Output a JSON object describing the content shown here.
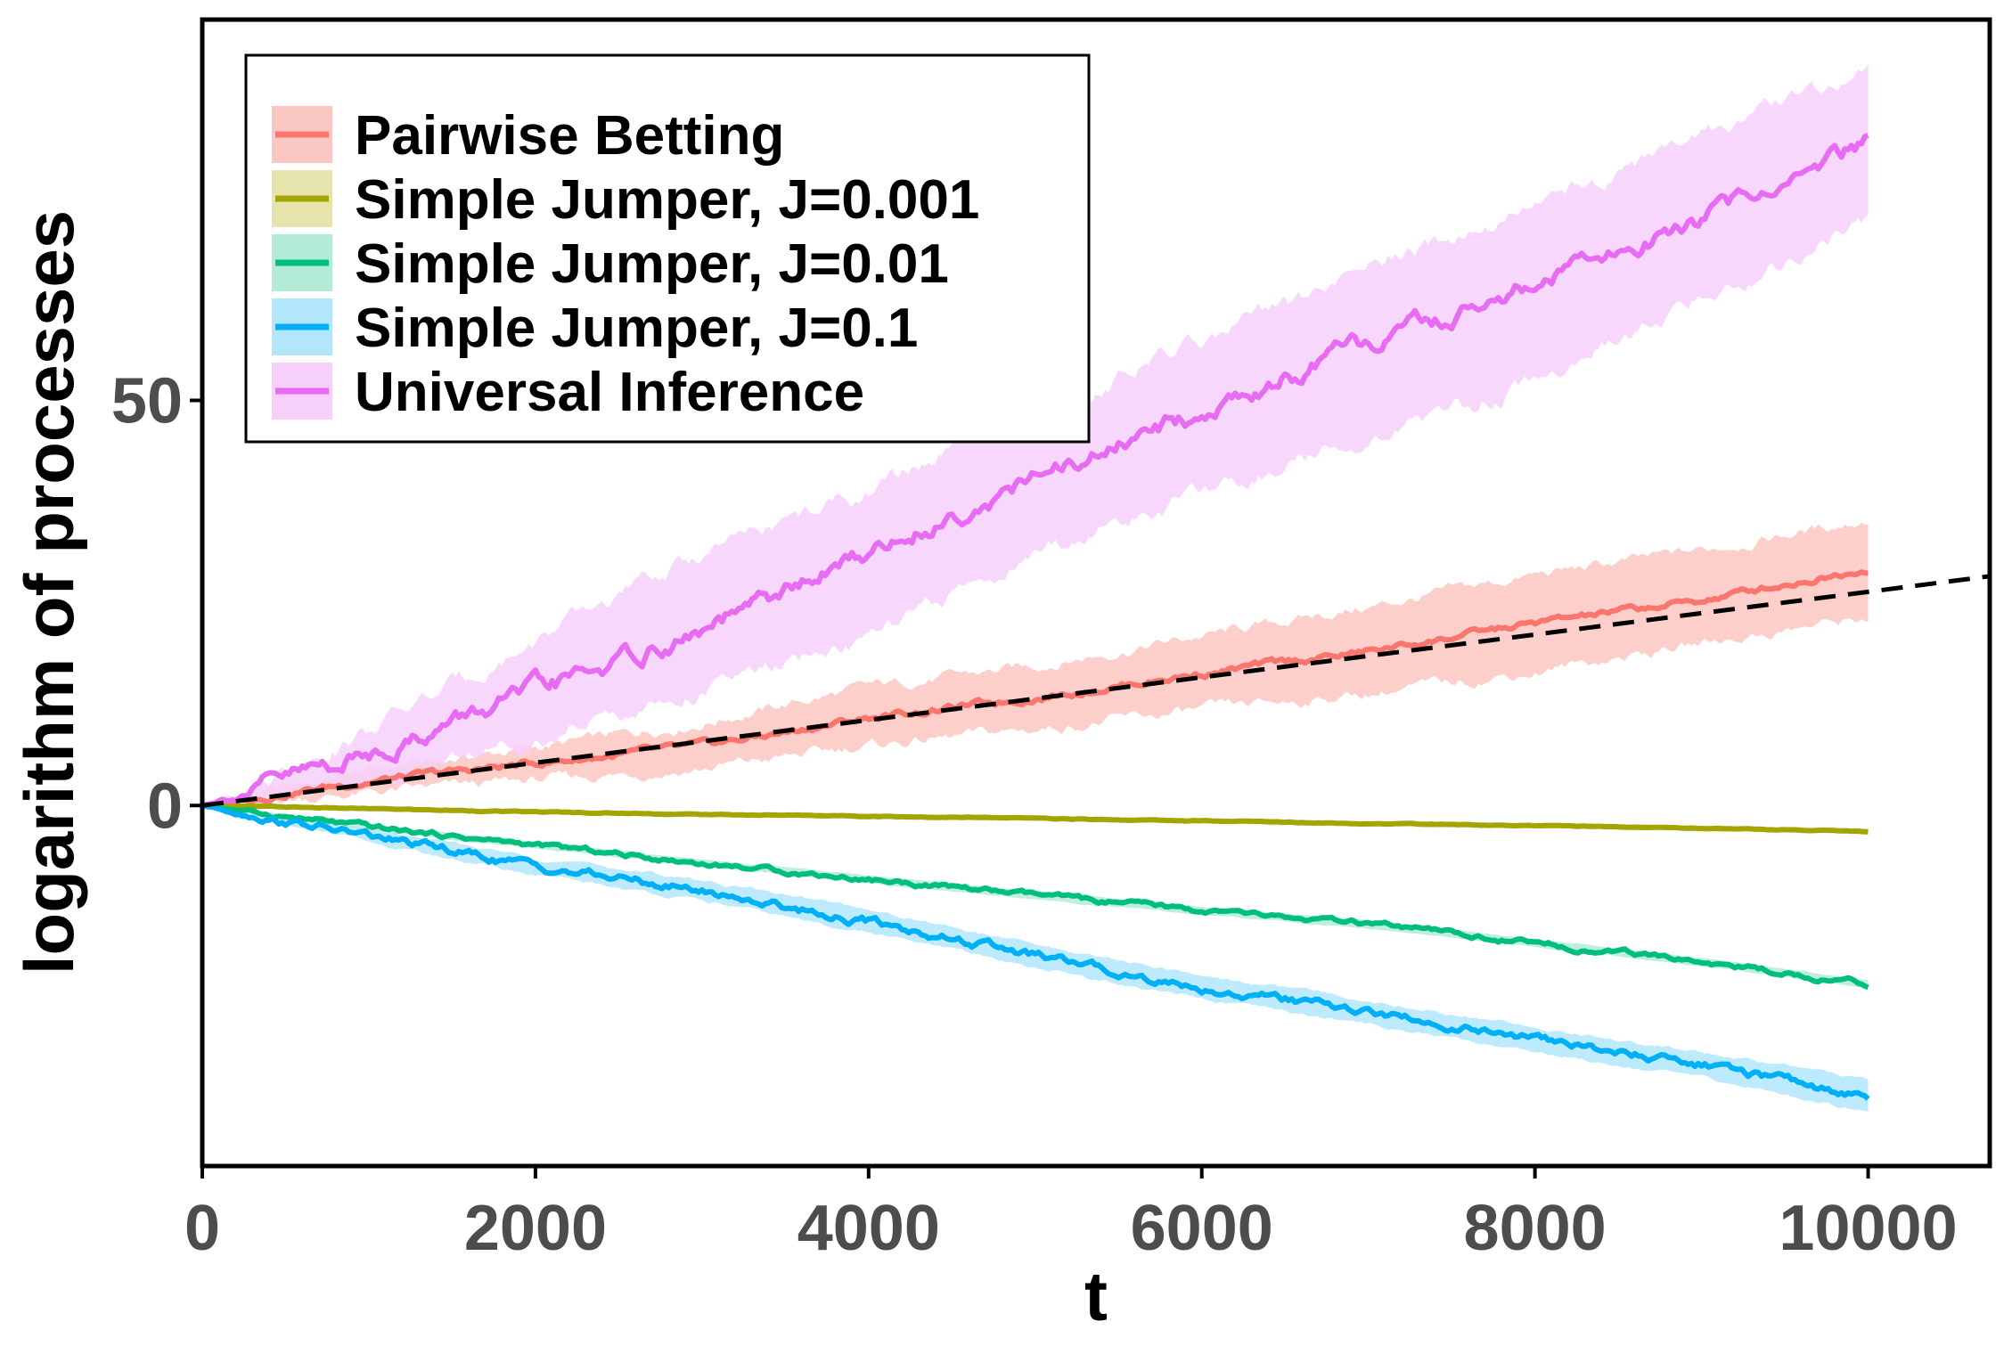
{
  "chart_data": {
    "type": "line",
    "xlabel": "t",
    "ylabel": "logarithm of processes",
    "xlim": [
      0,
      10730
    ],
    "ylim": [
      -44.5,
      97
    ],
    "x_ticks": [
      0,
      2000,
      4000,
      6000,
      8000,
      10000
    ],
    "x_tick_labels": [
      "0",
      "2000",
      "4000",
      "6000",
      "8000",
      "10000"
    ],
    "y_ticks": [
      0,
      50
    ],
    "y_tick_labels": [
      "0",
      "50"
    ],
    "grid": false,
    "legend_position": "top-left",
    "x": [
      0,
      1000,
      2000,
      3000,
      4000,
      5000,
      6000,
      7000,
      8000,
      9000,
      10000
    ],
    "series": [
      {
        "name": "Pairwise Betting",
        "color": "#F8766D",
        "band_color": "#FBC7C2",
        "values": [
          0,
          3.0,
          5.2,
          7.3,
          10.8,
          13.3,
          16.3,
          19.0,
          22.5,
          25.3,
          29.3
        ],
        "lower": [
          0,
          1.5,
          3.1,
          4.5,
          7.4,
          9.4,
          11.7,
          13.8,
          16.5,
          20.0,
          23.2
        ],
        "upper": [
          0,
          4.4,
          7.1,
          10.2,
          14.6,
          17.2,
          20.9,
          24.4,
          28.4,
          31.5,
          35.3
        ]
      },
      {
        "name": "Simple Jumper, J=0.001",
        "color": "#A3A500",
        "band_color": "#E6E3AD",
        "values": [
          0,
          -0.4,
          -0.8,
          -1.1,
          -1.3,
          -1.6,
          -1.9,
          -2.2,
          -2.5,
          -2.8,
          -3.2
        ],
        "lower": [
          0,
          -0.6,
          -1.0,
          -1.4,
          -1.6,
          -1.9,
          -2.2,
          -2.5,
          -2.8,
          -3.1,
          -3.5
        ],
        "upper": [
          0,
          -0.2,
          -0.6,
          -0.8,
          -1.0,
          -1.3,
          -1.6,
          -1.9,
          -2.2,
          -2.5,
          -2.9
        ]
      },
      {
        "name": "Simple Jumper, J=0.01",
        "color": "#00BF7D",
        "band_color": "#B2EBD8",
        "values": [
          0,
          -2.7,
          -4.9,
          -7.1,
          -9.1,
          -11.1,
          -13.0,
          -14.7,
          -17.0,
          -19.3,
          -22.0
        ],
        "lower": [
          0,
          -3.1,
          -5.3,
          -7.5,
          -9.6,
          -11.6,
          -13.5,
          -15.2,
          -17.5,
          -19.8,
          -22.5
        ],
        "upper": [
          0,
          -2.3,
          -4.5,
          -6.7,
          -8.6,
          -10.6,
          -12.5,
          -14.2,
          -16.5,
          -18.8,
          -21.5
        ]
      },
      {
        "name": "Simple Jumper, J=0.1",
        "color": "#00B0F6",
        "band_color": "#B2E6FB",
        "values": [
          0,
          -3.8,
          -7.5,
          -10.5,
          -14.3,
          -18.6,
          -22.5,
          -25.5,
          -28.9,
          -32.0,
          -35.8
        ],
        "lower": [
          0,
          -4.6,
          -8.6,
          -11.8,
          -15.7,
          -20.0,
          -24.0,
          -27.0,
          -30.4,
          -33.6,
          -37.8
        ],
        "upper": [
          0,
          -3.0,
          -6.4,
          -9.2,
          -12.9,
          -17.2,
          -21.0,
          -24.0,
          -27.4,
          -30.4,
          -33.8
        ]
      },
      {
        "name": "Universal Inference",
        "color": "#E76BF3",
        "band_color": "#F6D0FA",
        "values": [
          0,
          6.5,
          14.0,
          21.3,
          31.3,
          40.2,
          48.5,
          56.8,
          64.2,
          72.5,
          81.8
        ],
        "lower": [
          0,
          3.3,
          8.2,
          14.2,
          20.5,
          31.0,
          38.5,
          45.5,
          52.2,
          62.4,
          72.0
        ],
        "upper": [
          0,
          9.3,
          20.3,
          31.0,
          38.8,
          48.8,
          57.2,
          66.0,
          74.4,
          82.5,
          90.8
        ]
      }
    ],
    "reference_line": {
      "style": "dashed",
      "color": "#000000",
      "x": [
        0,
        10730
      ],
      "values": [
        0,
        28.3
      ]
    }
  }
}
